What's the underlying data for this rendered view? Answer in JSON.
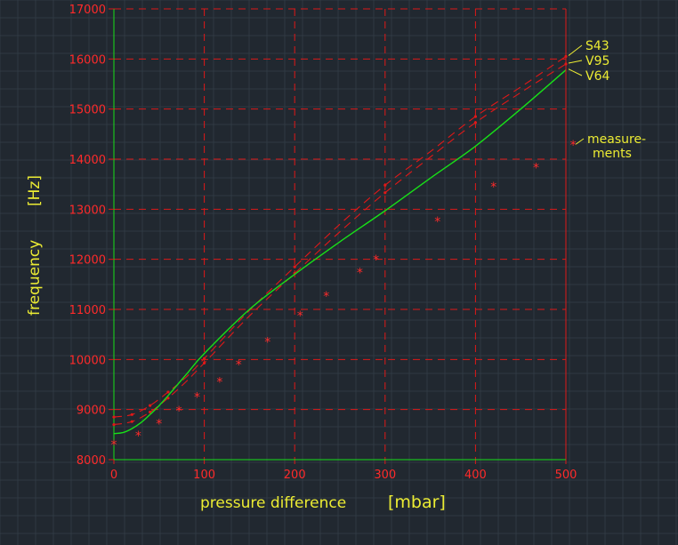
{
  "chart_data": {
    "type": "line",
    "title": "",
    "xlabel": "pressure difference",
    "xlabel_unit": "[mbar]",
    "ylabel": "frequency",
    "ylabel_unit": "[Hz]",
    "xlim": [
      0,
      500
    ],
    "ylim": [
      8000,
      17000
    ],
    "x_ticks": [
      0,
      100,
      200,
      300,
      400,
      500
    ],
    "y_ticks": [
      8000,
      9000,
      10000,
      11000,
      12000,
      13000,
      14000,
      15000,
      16000,
      17000
    ],
    "x_tick_labels": [
      "0",
      "100",
      "200",
      "300",
      "400",
      "500"
    ],
    "y_tick_labels": [
      "8000",
      "9000",
      "10000",
      "11000",
      "12000",
      "13000",
      "14000",
      "15000",
      "16000",
      "17000"
    ],
    "grid": true,
    "series": [
      {
        "name": "S43",
        "style": "dashed",
        "color": "#e01818",
        "x": [
          0,
          20,
          40,
          60,
          80,
          100,
          150,
          200,
          250,
          300,
          350,
          400,
          450,
          500
        ],
        "y": [
          8850,
          8900,
          9080,
          9350,
          9650,
          10020,
          10980,
          11850,
          12700,
          13480,
          14150,
          14850,
          15440,
          16050
        ]
      },
      {
        "name": "V95",
        "style": "dashed",
        "color": "#e01818",
        "x": [
          0,
          20,
          40,
          60,
          80,
          100,
          150,
          200,
          250,
          300,
          350,
          400,
          450,
          500
        ],
        "y": [
          8700,
          8760,
          8950,
          9230,
          9560,
          9930,
          10870,
          11720,
          12550,
          13330,
          14040,
          14730,
          15330,
          15900
        ]
      },
      {
        "name": "V64",
        "style": "solid",
        "color": "#18e018",
        "x": [
          0,
          10,
          20,
          30,
          40,
          50,
          60,
          80,
          100,
          150,
          200,
          250,
          300,
          350,
          400,
          450,
          500
        ],
        "y": [
          8520,
          8540,
          8620,
          8740,
          8900,
          9080,
          9280,
          9700,
          10120,
          11000,
          11700,
          12350,
          12970,
          13620,
          14260,
          15000,
          15780
        ]
      },
      {
        "name": "measurements",
        "style": "markers",
        "color": "#ff2a2a",
        "x": [
          0,
          27,
          50,
          72,
          92,
          117,
          138,
          170,
          206,
          235,
          272,
          290,
          358,
          420,
          467,
          508
        ],
        "y": [
          8300,
          8480,
          8720,
          8980,
          9250,
          9550,
          9900,
          10350,
          10880,
          11270,
          11740,
          11990,
          12760,
          13450,
          13830,
          14280
        ]
      }
    ],
    "legend": [
      {
        "label": "S43"
      },
      {
        "label": "V95"
      },
      {
        "label": "V64"
      },
      {
        "label": "measure-",
        "label2": "ments"
      }
    ]
  }
}
